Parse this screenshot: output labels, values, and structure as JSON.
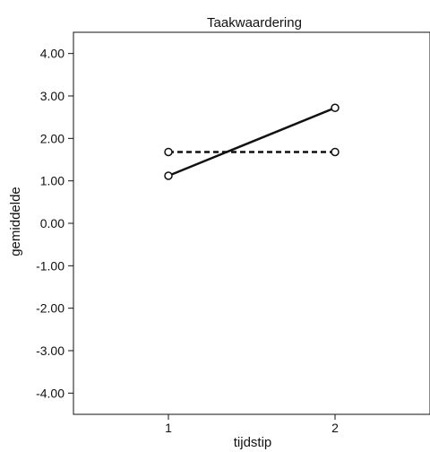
{
  "chart_data": {
    "type": "line",
    "title": "Taakwaardering",
    "xlabel": "tijdstip",
    "ylabel": "gemiddelde",
    "x": [
      1,
      2
    ],
    "x_tick_labels": [
      "1",
      "2"
    ],
    "ylim": [
      -4.5,
      4.5
    ],
    "y_ticks": [
      4,
      3,
      2,
      1,
      0,
      -1,
      -2,
      -3,
      -4
    ],
    "y_tick_labels": [
      "4.00",
      "3.00",
      "2.00",
      "1.00",
      "0.00",
      "-1.00",
      "-2.00",
      "-3.00",
      "-4.00"
    ],
    "grid": false,
    "legend": "none",
    "series": [
      {
        "values": [
          1.12,
          2.72
        ],
        "line_style": "solid",
        "marker": "open-circle",
        "color": "#111111"
      },
      {
        "values": [
          1.68,
          1.68
        ],
        "line_style": "dashed",
        "marker": "open-circle",
        "color": "#111111"
      }
    ]
  }
}
